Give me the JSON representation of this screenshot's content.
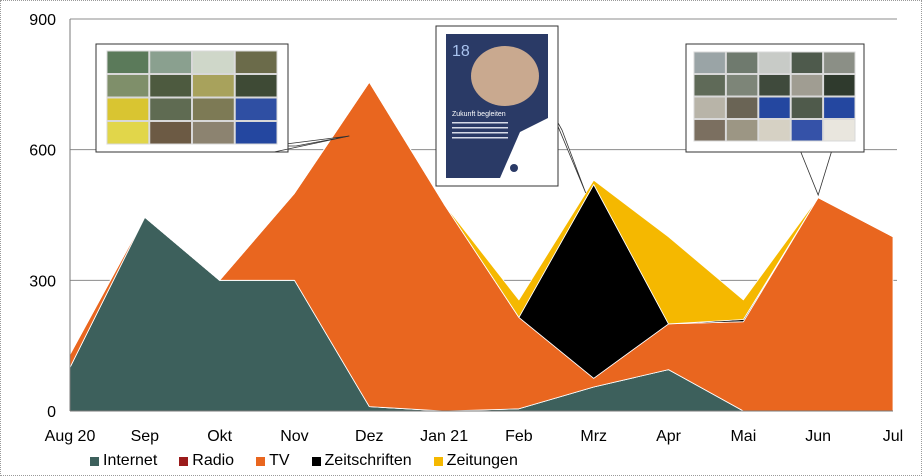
{
  "chart_data": {
    "type": "area",
    "stacked": true,
    "categories": [
      "Aug 20",
      "Sep",
      "Okt",
      "Nov",
      "Dez",
      "Jan 21",
      "Feb",
      "Mrz",
      "Apr",
      "Mai",
      "Jun",
      "Jul"
    ],
    "ylim": [
      0,
      900
    ],
    "yticks": [
      "0",
      "300",
      "600",
      "900"
    ],
    "grid": true,
    "legend_position": "bottom",
    "series": [
      {
        "name": "Internet",
        "color": "#3d605c",
        "values": [
          100,
          445,
          300,
          300,
          10,
          0,
          5,
          55,
          95,
          0,
          0,
          0
        ]
      },
      {
        "name": "Radio",
        "color": "#9b1b1b",
        "values": [
          0,
          0,
          0,
          0,
          0,
          0,
          0,
          0,
          0,
          0,
          0,
          0
        ]
      },
      {
        "name": "TV",
        "color": "#e9661f",
        "values": [
          30,
          0,
          0,
          200,
          745,
          475,
          210,
          20,
          105,
          205,
          490,
          400
        ]
      },
      {
        "name": "Zeitschriften",
        "color": "#000000",
        "values": [
          0,
          0,
          0,
          0,
          0,
          0,
          0,
          445,
          0,
          5,
          0,
          0
        ]
      },
      {
        "name": "Zeitungen",
        "color": "#f5b800",
        "values": [
          0,
          0,
          0,
          0,
          0,
          0,
          40,
          10,
          200,
          45,
          0,
          0
        ]
      }
    ],
    "legend": {
      "internet": "Internet",
      "radio": "Radio",
      "tv": "TV",
      "zeitschriften": "Zeitschriften",
      "zeitungen": "Zeitungen"
    },
    "callouts": [
      {
        "name": "tv-campaign-collage",
        "target_index": 4
      },
      {
        "name": "magazine-ad",
        "target_index": 7,
        "headline": "Zukunft begleiten",
        "badge": "18"
      },
      {
        "name": "campaign-collage-2",
        "target_index": 10
      }
    ]
  }
}
